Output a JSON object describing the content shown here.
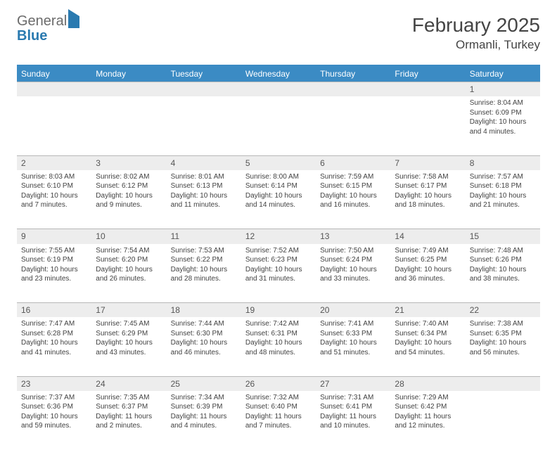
{
  "brand": {
    "part1": "General",
    "part2": "Blue"
  },
  "title": "February 2025",
  "location": "Ormanli, Turkey",
  "day_headers": [
    "Sunday",
    "Monday",
    "Tuesday",
    "Wednesday",
    "Thursday",
    "Friday",
    "Saturday"
  ],
  "colors": {
    "header_bg": "#3b8bc4",
    "header_text": "#ffffff",
    "daynum_bg": "#ededed",
    "border": "#b8b8b8",
    "brand_gray": "#6b6b6b",
    "brand_blue": "#2a7ab0",
    "text": "#424242"
  },
  "weeks": [
    [
      null,
      null,
      null,
      null,
      null,
      null,
      {
        "n": "1",
        "sr": "Sunrise: 8:04 AM",
        "ss": "Sunset: 6:09 PM",
        "dl": "Daylight: 10 hours and 4 minutes."
      }
    ],
    [
      {
        "n": "2",
        "sr": "Sunrise: 8:03 AM",
        "ss": "Sunset: 6:10 PM",
        "dl": "Daylight: 10 hours and 7 minutes."
      },
      {
        "n": "3",
        "sr": "Sunrise: 8:02 AM",
        "ss": "Sunset: 6:12 PM",
        "dl": "Daylight: 10 hours and 9 minutes."
      },
      {
        "n": "4",
        "sr": "Sunrise: 8:01 AM",
        "ss": "Sunset: 6:13 PM",
        "dl": "Daylight: 10 hours and 11 minutes."
      },
      {
        "n": "5",
        "sr": "Sunrise: 8:00 AM",
        "ss": "Sunset: 6:14 PM",
        "dl": "Daylight: 10 hours and 14 minutes."
      },
      {
        "n": "6",
        "sr": "Sunrise: 7:59 AM",
        "ss": "Sunset: 6:15 PM",
        "dl": "Daylight: 10 hours and 16 minutes."
      },
      {
        "n": "7",
        "sr": "Sunrise: 7:58 AM",
        "ss": "Sunset: 6:17 PM",
        "dl": "Daylight: 10 hours and 18 minutes."
      },
      {
        "n": "8",
        "sr": "Sunrise: 7:57 AM",
        "ss": "Sunset: 6:18 PM",
        "dl": "Daylight: 10 hours and 21 minutes."
      }
    ],
    [
      {
        "n": "9",
        "sr": "Sunrise: 7:55 AM",
        "ss": "Sunset: 6:19 PM",
        "dl": "Daylight: 10 hours and 23 minutes."
      },
      {
        "n": "10",
        "sr": "Sunrise: 7:54 AM",
        "ss": "Sunset: 6:20 PM",
        "dl": "Daylight: 10 hours and 26 minutes."
      },
      {
        "n": "11",
        "sr": "Sunrise: 7:53 AM",
        "ss": "Sunset: 6:22 PM",
        "dl": "Daylight: 10 hours and 28 minutes."
      },
      {
        "n": "12",
        "sr": "Sunrise: 7:52 AM",
        "ss": "Sunset: 6:23 PM",
        "dl": "Daylight: 10 hours and 31 minutes."
      },
      {
        "n": "13",
        "sr": "Sunrise: 7:50 AM",
        "ss": "Sunset: 6:24 PM",
        "dl": "Daylight: 10 hours and 33 minutes."
      },
      {
        "n": "14",
        "sr": "Sunrise: 7:49 AM",
        "ss": "Sunset: 6:25 PM",
        "dl": "Daylight: 10 hours and 36 minutes."
      },
      {
        "n": "15",
        "sr": "Sunrise: 7:48 AM",
        "ss": "Sunset: 6:26 PM",
        "dl": "Daylight: 10 hours and 38 minutes."
      }
    ],
    [
      {
        "n": "16",
        "sr": "Sunrise: 7:47 AM",
        "ss": "Sunset: 6:28 PM",
        "dl": "Daylight: 10 hours and 41 minutes."
      },
      {
        "n": "17",
        "sr": "Sunrise: 7:45 AM",
        "ss": "Sunset: 6:29 PM",
        "dl": "Daylight: 10 hours and 43 minutes."
      },
      {
        "n": "18",
        "sr": "Sunrise: 7:44 AM",
        "ss": "Sunset: 6:30 PM",
        "dl": "Daylight: 10 hours and 46 minutes."
      },
      {
        "n": "19",
        "sr": "Sunrise: 7:42 AM",
        "ss": "Sunset: 6:31 PM",
        "dl": "Daylight: 10 hours and 48 minutes."
      },
      {
        "n": "20",
        "sr": "Sunrise: 7:41 AM",
        "ss": "Sunset: 6:33 PM",
        "dl": "Daylight: 10 hours and 51 minutes."
      },
      {
        "n": "21",
        "sr": "Sunrise: 7:40 AM",
        "ss": "Sunset: 6:34 PM",
        "dl": "Daylight: 10 hours and 54 minutes."
      },
      {
        "n": "22",
        "sr": "Sunrise: 7:38 AM",
        "ss": "Sunset: 6:35 PM",
        "dl": "Daylight: 10 hours and 56 minutes."
      }
    ],
    [
      {
        "n": "23",
        "sr": "Sunrise: 7:37 AM",
        "ss": "Sunset: 6:36 PM",
        "dl": "Daylight: 10 hours and 59 minutes."
      },
      {
        "n": "24",
        "sr": "Sunrise: 7:35 AM",
        "ss": "Sunset: 6:37 PM",
        "dl": "Daylight: 11 hours and 2 minutes."
      },
      {
        "n": "25",
        "sr": "Sunrise: 7:34 AM",
        "ss": "Sunset: 6:39 PM",
        "dl": "Daylight: 11 hours and 4 minutes."
      },
      {
        "n": "26",
        "sr": "Sunrise: 7:32 AM",
        "ss": "Sunset: 6:40 PM",
        "dl": "Daylight: 11 hours and 7 minutes."
      },
      {
        "n": "27",
        "sr": "Sunrise: 7:31 AM",
        "ss": "Sunset: 6:41 PM",
        "dl": "Daylight: 11 hours and 10 minutes."
      },
      {
        "n": "28",
        "sr": "Sunrise: 7:29 AM",
        "ss": "Sunset: 6:42 PM",
        "dl": "Daylight: 11 hours and 12 minutes."
      },
      null
    ]
  ]
}
